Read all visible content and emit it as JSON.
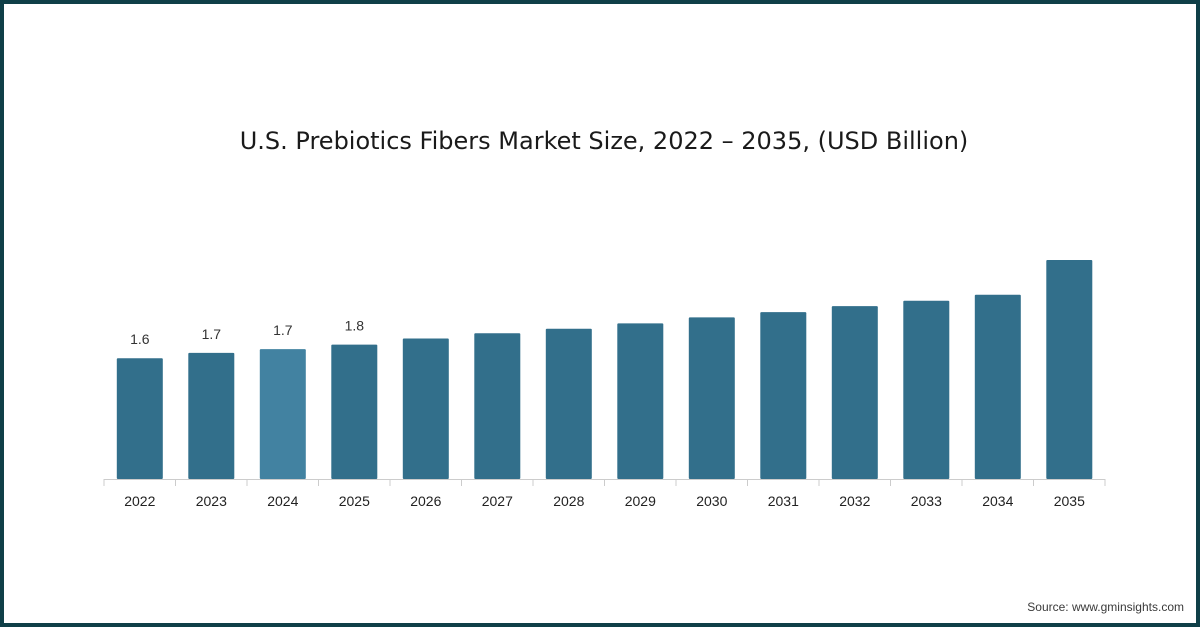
{
  "colors": {
    "bar": "#326f8b",
    "bar_highlight": "#4282a1",
    "axis": "#cccccc",
    "border": "#0f3f48"
  },
  "source": "Source: www.gminsights.com",
  "chart_data": {
    "type": "bar",
    "title": "U.S. Prebiotics Fibers Market Size, 2022 – 2035, (USD Billion)",
    "xlabel": "",
    "ylabel": "",
    "categories": [
      "2022",
      "2023",
      "2024",
      "2025",
      "2026",
      "2027",
      "2028",
      "2029",
      "2030",
      "2031",
      "2032",
      "2033",
      "2034",
      "2035"
    ],
    "values": [
      1.6,
      1.67,
      1.72,
      1.78,
      1.86,
      1.93,
      1.99,
      2.06,
      2.14,
      2.21,
      2.29,
      2.36,
      2.44,
      2.9
    ],
    "data_labels": [
      "1.6",
      "1.7",
      "1.7",
      "1.8",
      "",
      "",
      "",
      "",
      "",
      "",
      "",
      "",
      "",
      ""
    ],
    "highlight_category": "2024",
    "ylim": [
      0,
      2.9
    ],
    "grid": false,
    "legend": "none"
  }
}
